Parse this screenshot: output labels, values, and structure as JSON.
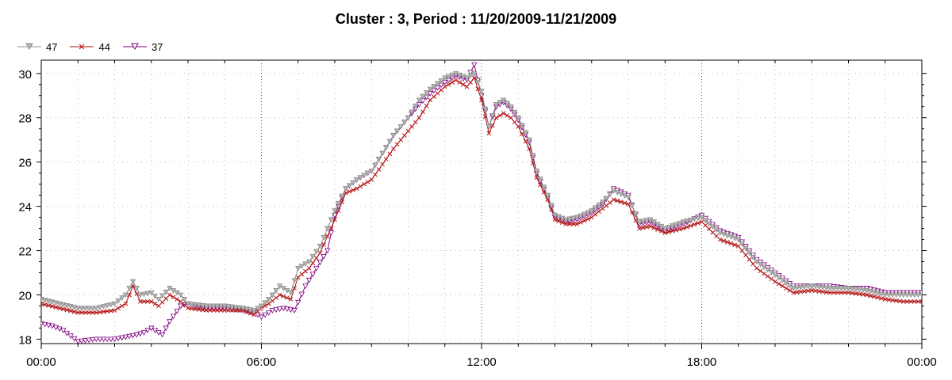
{
  "chart_data": {
    "type": "line",
    "title": "Cluster : 3, Period : 11/20/2009-11/21/2009",
    "xlabel": "",
    "ylabel": "",
    "x_range_hours": [
      0,
      24
    ],
    "ylim": [
      17.8,
      30.6
    ],
    "x_tick_labels": [
      "00:00",
      "06:00",
      "12:00",
      "18:00",
      "00:00"
    ],
    "y_ticks": [
      18,
      20,
      22,
      24,
      26,
      28,
      30
    ],
    "grid": true,
    "legend_position": "top-left",
    "series": [
      {
        "name": "47",
        "color": "#8c8c8c",
        "marker": "triangle-down",
        "points": [
          [
            0,
            19.8
          ],
          [
            0.5,
            19.6
          ],
          [
            1,
            19.4
          ],
          [
            1.5,
            19.4
          ],
          [
            2,
            19.6
          ],
          [
            2.3,
            20.0
          ],
          [
            2.5,
            20.6
          ],
          [
            2.7,
            20.0
          ],
          [
            3,
            20.1
          ],
          [
            3.2,
            19.8
          ],
          [
            3.5,
            20.3
          ],
          [
            3.8,
            20.0
          ],
          [
            4,
            19.6
          ],
          [
            4.5,
            19.5
          ],
          [
            5,
            19.5
          ],
          [
            5.5,
            19.4
          ],
          [
            5.8,
            19.3
          ],
          [
            6,
            19.5
          ],
          [
            6.2,
            19.8
          ],
          [
            6.5,
            20.4
          ],
          [
            6.8,
            20.1
          ],
          [
            7,
            21.2
          ],
          [
            7.3,
            21.5
          ],
          [
            7.6,
            22.2
          ],
          [
            8,
            23.8
          ],
          [
            8.3,
            24.8
          ],
          [
            8.6,
            25.2
          ],
          [
            9,
            25.6
          ],
          [
            9.3,
            26.4
          ],
          [
            9.6,
            27.2
          ],
          [
            10,
            28.0
          ],
          [
            10.3,
            28.8
          ],
          [
            10.6,
            29.3
          ],
          [
            11,
            29.8
          ],
          [
            11.3,
            30.0
          ],
          [
            11.6,
            29.8
          ],
          [
            11.8,
            30.0
          ],
          [
            12.0,
            29.2
          ],
          [
            12.2,
            27.6
          ],
          [
            12.4,
            28.6
          ],
          [
            12.6,
            28.8
          ],
          [
            12.8,
            28.5
          ],
          [
            13,
            28.0
          ],
          [
            13.3,
            27.0
          ],
          [
            13.5,
            25.6
          ],
          [
            13.8,
            24.5
          ],
          [
            14,
            23.6
          ],
          [
            14.3,
            23.4
          ],
          [
            14.6,
            23.5
          ],
          [
            15,
            23.8
          ],
          [
            15.3,
            24.2
          ],
          [
            15.6,
            24.7
          ],
          [
            16,
            24.4
          ],
          [
            16.3,
            23.3
          ],
          [
            16.6,
            23.4
          ],
          [
            17,
            23.0
          ],
          [
            17.5,
            23.3
          ],
          [
            18,
            23.5
          ],
          [
            18.5,
            22.8
          ],
          [
            19,
            22.5
          ],
          [
            19.5,
            21.5
          ],
          [
            20,
            20.9
          ],
          [
            20.5,
            20.3
          ],
          [
            21,
            20.4
          ],
          [
            21.5,
            20.3
          ],
          [
            22,
            20.3
          ],
          [
            22.5,
            20.2
          ],
          [
            23,
            20.0
          ],
          [
            23.5,
            20.0
          ],
          [
            24,
            20.0
          ]
        ]
      },
      {
        "name": "44",
        "color": "#b01010",
        "marker": "x",
        "points": [
          [
            0,
            19.6
          ],
          [
            0.5,
            19.4
          ],
          [
            1,
            19.2
          ],
          [
            1.5,
            19.2
          ],
          [
            2,
            19.3
          ],
          [
            2.3,
            19.6
          ],
          [
            2.5,
            20.4
          ],
          [
            2.7,
            19.7
          ],
          [
            3,
            19.7
          ],
          [
            3.2,
            19.5
          ],
          [
            3.5,
            20.0
          ],
          [
            3.8,
            19.7
          ],
          [
            4,
            19.4
          ],
          [
            4.5,
            19.3
          ],
          [
            5,
            19.3
          ],
          [
            5.5,
            19.3
          ],
          [
            5.8,
            19.1
          ],
          [
            6,
            19.4
          ],
          [
            6.2,
            19.6
          ],
          [
            6.5,
            20.0
          ],
          [
            6.8,
            19.8
          ],
          [
            7,
            20.8
          ],
          [
            7.3,
            21.2
          ],
          [
            7.6,
            21.9
          ],
          [
            8,
            23.4
          ],
          [
            8.3,
            24.6
          ],
          [
            8.6,
            24.8
          ],
          [
            9,
            25.2
          ],
          [
            9.3,
            25.9
          ],
          [
            9.6,
            26.6
          ],
          [
            10,
            27.4
          ],
          [
            10.3,
            28.0
          ],
          [
            10.6,
            28.8
          ],
          [
            11,
            29.4
          ],
          [
            11.3,
            29.7
          ],
          [
            11.6,
            29.4
          ],
          [
            11.8,
            29.8
          ],
          [
            12.0,
            28.8
          ],
          [
            12.2,
            27.3
          ],
          [
            12.4,
            28.0
          ],
          [
            12.6,
            28.2
          ],
          [
            12.8,
            28.0
          ],
          [
            13,
            27.6
          ],
          [
            13.3,
            26.6
          ],
          [
            13.5,
            25.3
          ],
          [
            13.8,
            24.3
          ],
          [
            14,
            23.4
          ],
          [
            14.3,
            23.2
          ],
          [
            14.6,
            23.2
          ],
          [
            15,
            23.5
          ],
          [
            15.3,
            23.9
          ],
          [
            15.6,
            24.3
          ],
          [
            16,
            24.1
          ],
          [
            16.3,
            23.0
          ],
          [
            16.6,
            23.1
          ],
          [
            17,
            22.8
          ],
          [
            17.5,
            23.0
          ],
          [
            18,
            23.3
          ],
          [
            18.5,
            22.5
          ],
          [
            19,
            22.2
          ],
          [
            19.5,
            21.2
          ],
          [
            20,
            20.6
          ],
          [
            20.5,
            20.1
          ],
          [
            21,
            20.2
          ],
          [
            21.5,
            20.1
          ],
          [
            22,
            20.1
          ],
          [
            22.5,
            20.0
          ],
          [
            23,
            19.8
          ],
          [
            23.5,
            19.7
          ],
          [
            24,
            19.7
          ]
        ]
      },
      {
        "name": "37",
        "color": "#800080",
        "marker": "triangle-down",
        "points": [
          [
            0,
            18.7
          ],
          [
            0.3,
            18.6
          ],
          [
            0.6,
            18.4
          ],
          [
            1,
            17.9
          ],
          [
            1.5,
            18.0
          ],
          [
            2,
            18.0
          ],
          [
            2.3,
            18.1
          ],
          [
            2.6,
            18.2
          ],
          [
            2.8,
            18.3
          ],
          [
            3,
            18.5
          ],
          [
            3.3,
            18.2
          ],
          [
            3.5,
            18.8
          ],
          [
            3.8,
            19.5
          ],
          [
            4,
            19.6
          ],
          [
            4.5,
            19.4
          ],
          [
            5,
            19.4
          ],
          [
            5.5,
            19.3
          ],
          [
            5.8,
            19.2
          ],
          [
            6,
            19.0
          ],
          [
            6.3,
            19.3
          ],
          [
            6.6,
            19.4
          ],
          [
            6.9,
            19.3
          ],
          [
            7.2,
            20.4
          ],
          [
            7.5,
            21.2
          ],
          [
            7.8,
            22.0
          ],
          [
            8,
            23.6
          ],
          [
            8.3,
            24.8
          ],
          [
            8.6,
            25.2
          ],
          [
            9,
            25.6
          ],
          [
            9.3,
            26.4
          ],
          [
            9.6,
            27.2
          ],
          [
            10,
            28.0
          ],
          [
            10.3,
            28.6
          ],
          [
            10.6,
            29.1
          ],
          [
            11,
            29.6
          ],
          [
            11.3,
            29.9
          ],
          [
            11.6,
            29.7
          ],
          [
            11.8,
            30.4
          ],
          [
            12.0,
            29.0
          ],
          [
            12.2,
            27.6
          ],
          [
            12.4,
            28.5
          ],
          [
            12.6,
            28.7
          ],
          [
            12.8,
            28.4
          ],
          [
            13,
            27.9
          ],
          [
            13.3,
            26.9
          ],
          [
            13.5,
            25.5
          ],
          [
            13.8,
            24.4
          ],
          [
            14,
            23.5
          ],
          [
            14.3,
            23.3
          ],
          [
            14.6,
            23.4
          ],
          [
            15,
            23.7
          ],
          [
            15.3,
            24.1
          ],
          [
            15.6,
            24.8
          ],
          [
            16,
            24.5
          ],
          [
            16.3,
            23.2
          ],
          [
            16.6,
            23.3
          ],
          [
            17,
            22.9
          ],
          [
            17.5,
            23.2
          ],
          [
            18,
            23.6
          ],
          [
            18.5,
            22.9
          ],
          [
            19,
            22.6
          ],
          [
            19.5,
            21.6
          ],
          [
            20,
            21.0
          ],
          [
            20.5,
            20.4
          ],
          [
            21,
            20.4
          ],
          [
            21.5,
            20.4
          ],
          [
            22,
            20.3
          ],
          [
            22.5,
            20.3
          ],
          [
            23,
            20.1
          ],
          [
            23.5,
            20.1
          ],
          [
            24,
            20.1
          ]
        ]
      }
    ]
  }
}
